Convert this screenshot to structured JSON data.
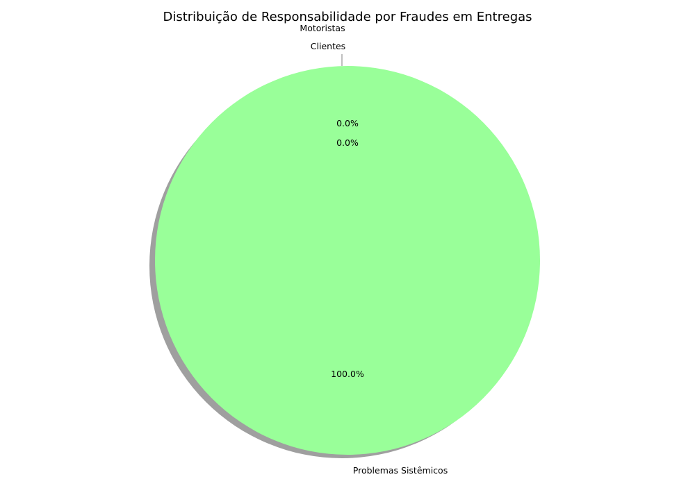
{
  "chart_data": {
    "type": "pie",
    "title": "Distribuição de Responsabilidade por Fraudes em Entregas",
    "slices": [
      {
        "label": "Motoristas",
        "value": 0,
        "pct_label": "0.0%"
      },
      {
        "label": "Clientes",
        "value": 0,
        "pct_label": "0.0%"
      },
      {
        "label": "Problemas Sistêmicos",
        "value": 100,
        "pct_label": "100.0%"
      }
    ],
    "colors": {
      "Problemas Sistêmicos": "#99ff99",
      "shadow": "#7f7f7f"
    },
    "shadow": true,
    "start_angle_deg": 90
  }
}
